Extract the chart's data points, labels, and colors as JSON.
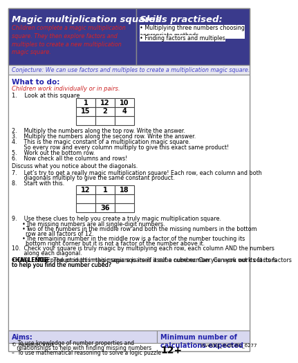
{
  "title_left": "Magic multiplication squares",
  "title_right": "Skills practised:",
  "skills": [
    "Multiplying three numbers choosing\nappropriate methods",
    "Finding factors and multiples"
  ],
  "intro_text": "Children complete a magic multiplication\nsquare. They then explore factors and\nmultiples to create a new multiplication\nmagic square.",
  "conjecture": "Conjecture: We can use factors and multiples to create a multiplication magic square.",
  "what_to_do": "What to do:",
  "children_work": "Children work individually or in pairs.",
  "steps": [
    "1.    Look at this square",
    "2.    Multiply the numbers along the top row. Write the answer.",
    "3.    Multiply the numbers along the second row. Write the answer.",
    "4.    This is the magic constant of a multiplication magic square.\n       So every row and every column multiply to give this exact same product!",
    "5.    Work out the bottom row.",
    "6.    Now check all the columns and rows!",
    "",
    "Discuss what you notice about the diagonals.",
    "",
    "7.    Let’s try to get a really magic multiplication square! Each row, each column and both\n       diagonals multiply to give the same constant product.",
    "8.    Start with this."
  ],
  "step9_intro": "9.    Use these clues to help you create a truly magic multiplication square.",
  "clues": [
    "The missing numbers are all single-digit numbers.",
    "Two of the numbers in the middle row and both the missing numbers in the bottom\nrow are all factors of 12.",
    "The remaining number in the middle row is a factor of the number touching its\nbottom right corner but it is not a factor of the number above it.",
    "Check your square is truly magic by multiplying each row, each column AND the numbers\nalong each diagonal."
  ],
  "step10": "10.  Check your square is truly magic by multiplying each row, each column AND the numbers\n       along each diagonal.",
  "challenge": "CHALLENGE: The product in this magic square is itself a cube number. Can you work out its factors\nto help you find the number cubed?",
  "aims_title": "Aims:",
  "aims": [
    "–  To use knowledge of number properties and\n   relationships to help with finding missing numbers",
    "–  To use mathematical reasoning to solve a logic puzzle"
  ],
  "min_calcs_title": "Minimum number of\ncalculations expected",
  "min_calcs_value": "12+",
  "footer_left": "© Hamilton Trust",
  "footer_right": "investig_mult-div_6277",
  "table1": [
    [
      "1",
      "12",
      "10"
    ],
    [
      "15",
      "2",
      "4"
    ],
    [
      "",
      "",
      ""
    ]
  ],
  "table2": [
    [
      "12",
      "1",
      "18"
    ],
    [
      "",
      "",
      ""
    ],
    [
      "",
      "36",
      ""
    ]
  ],
  "header_bg": "#4a4aaa",
  "header_text_color": "#ffffff",
  "title_bg_left": "#3333aa",
  "title_bg_right": "#3333aa",
  "intro_color": "#cc0000",
  "conjecture_color": "#4444cc",
  "what_to_do_color": "#3333aa",
  "body_bg": "#ffffff",
  "aims_bg": "#e8e8f8",
  "aims_border": "#4444aa",
  "border_color": "#888888",
  "font_size_title": 11,
  "font_size_body": 7,
  "font_size_small": 6
}
